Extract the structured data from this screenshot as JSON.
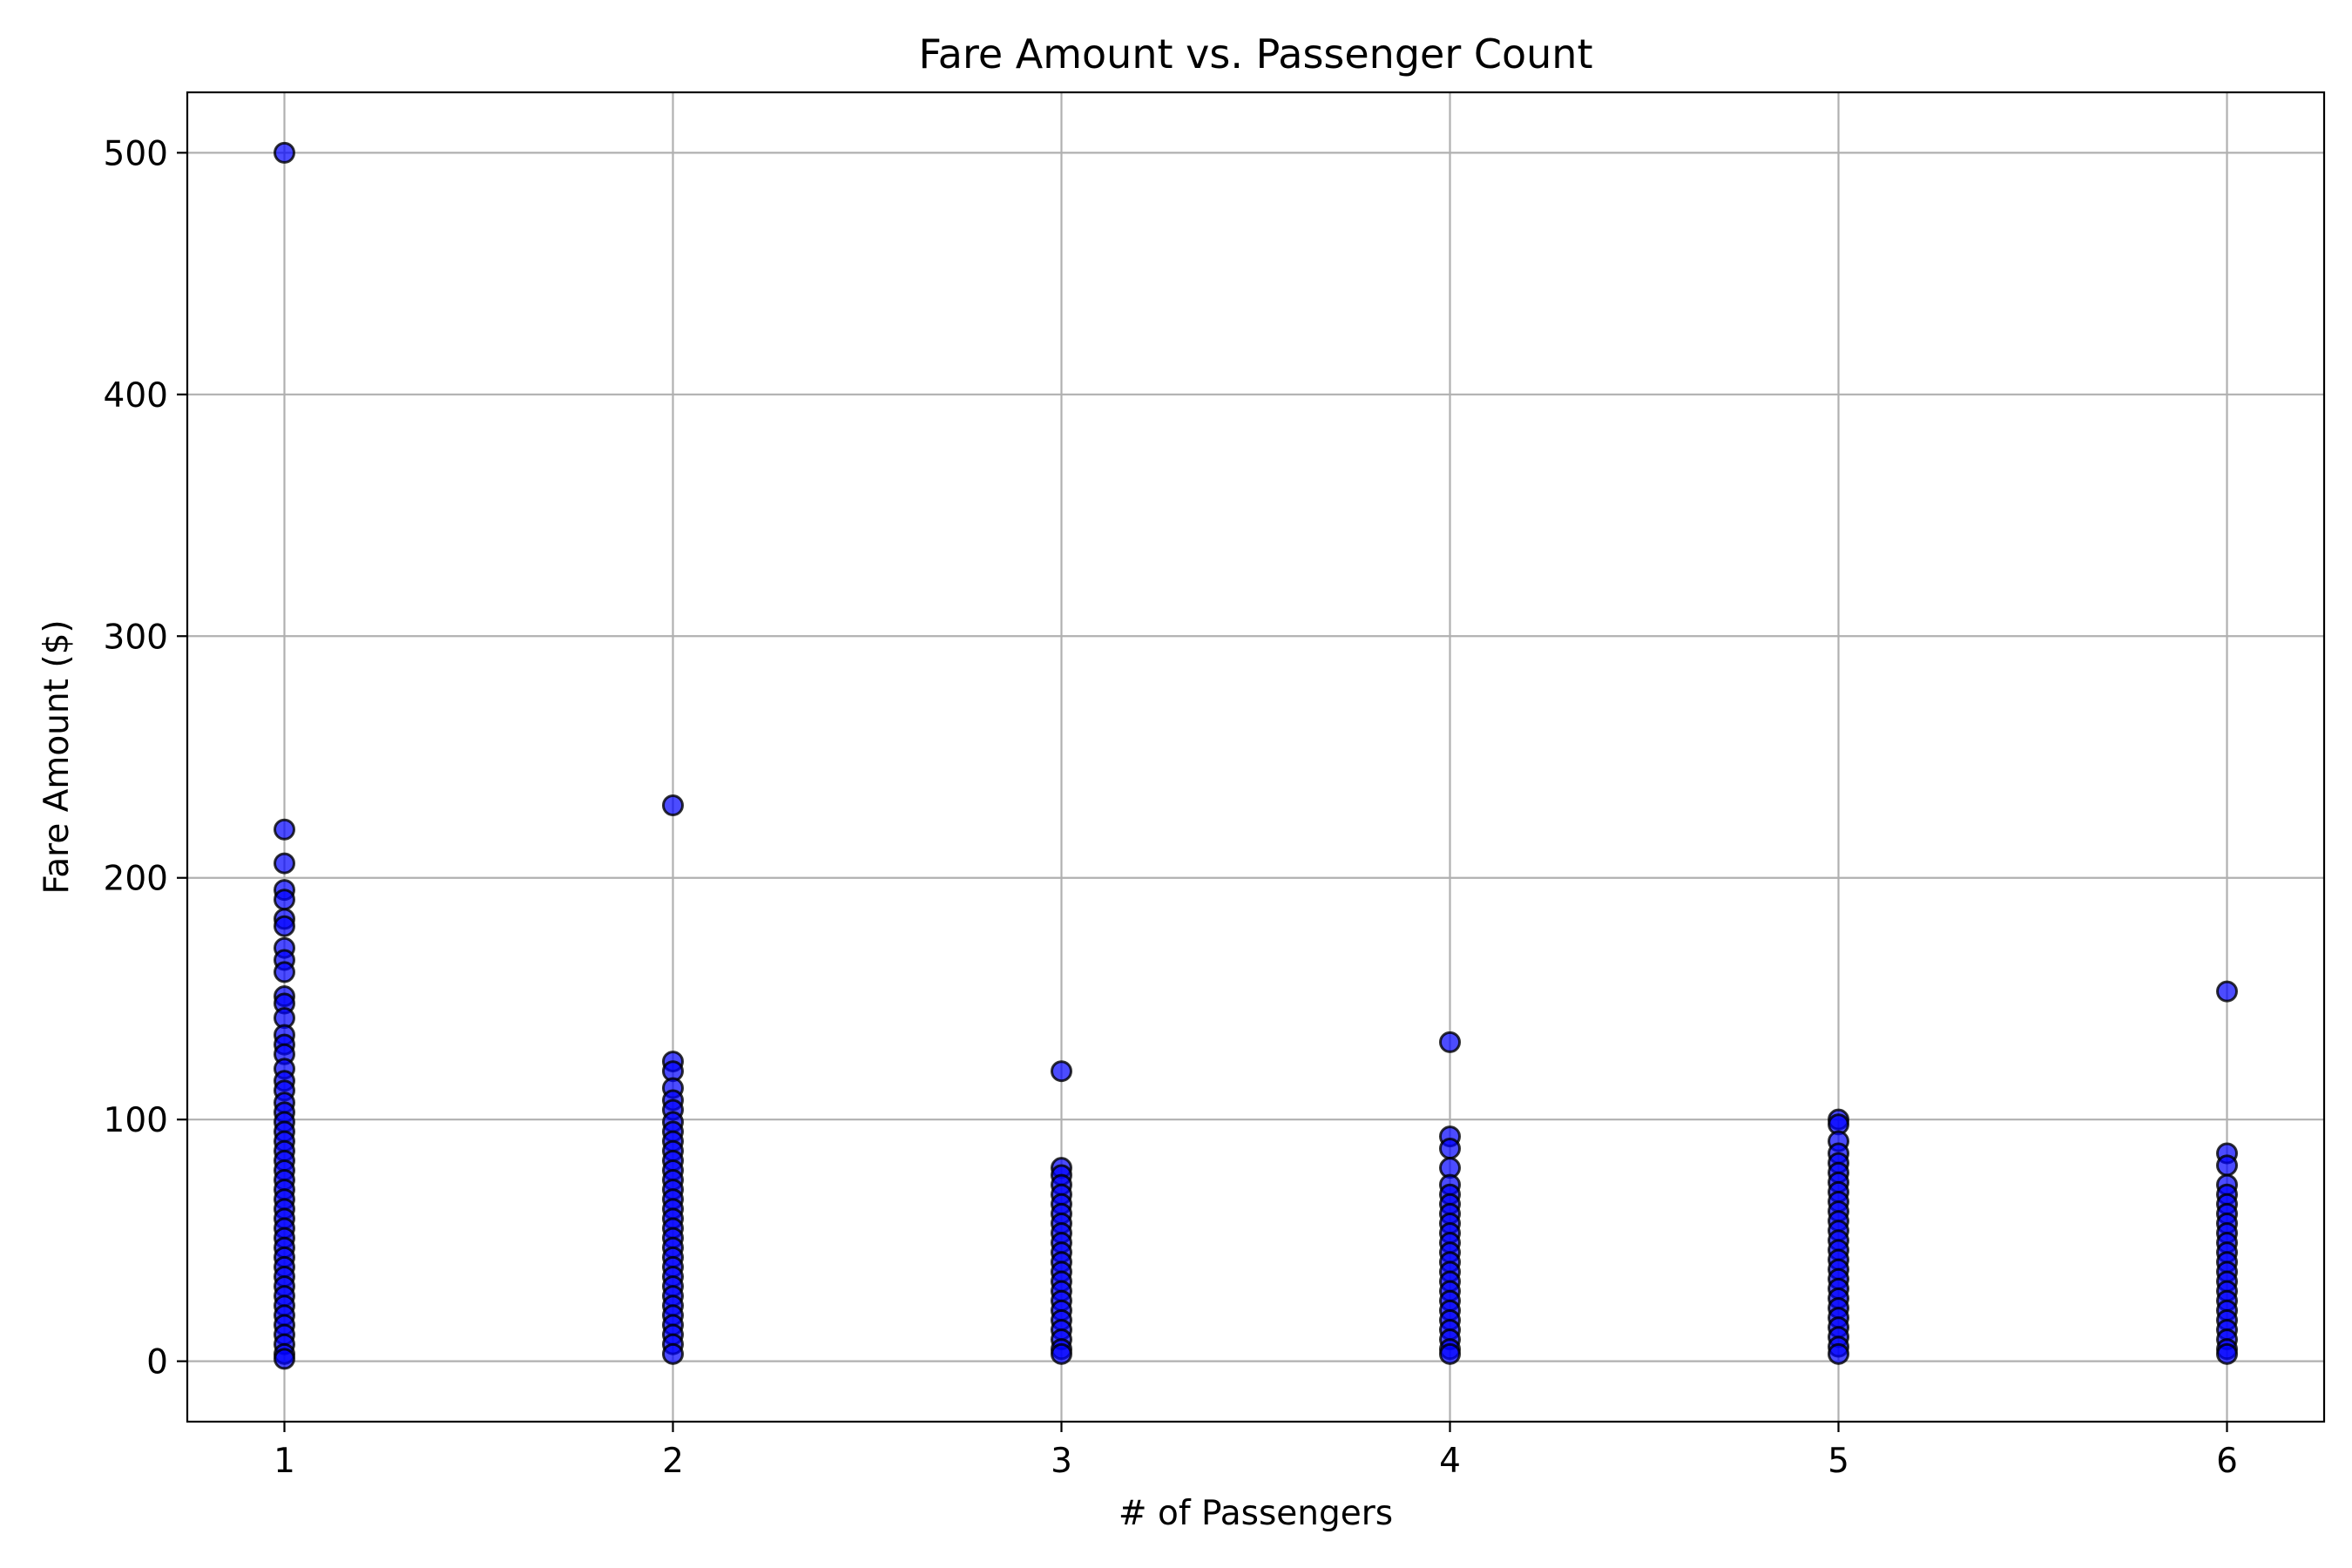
{
  "chart_data": {
    "type": "scatter",
    "title": "Fare Amount vs. Passenger Count",
    "xlabel": "# of Passengers",
    "ylabel": "Fare Amount ($)",
    "xlim": [
      0.75,
      6.25
    ],
    "ylim": [
      -25,
      525
    ],
    "xticks": [
      1,
      2,
      3,
      4,
      5,
      6
    ],
    "yticks": [
      0,
      100,
      200,
      300,
      400,
      500
    ],
    "grid": true,
    "legend": null,
    "marker_color": "#0000ff",
    "marker_edge_color": "#000000",
    "marker_alpha": 0.7,
    "series": [
      {
        "x": 1,
        "y": [
          500,
          220,
          206,
          195,
          191,
          183,
          180,
          171,
          166,
          161,
          151,
          148,
          142,
          135,
          131,
          127,
          121,
          116,
          112,
          107,
          103,
          99,
          95,
          91,
          87,
          83,
          79,
          75,
          71,
          67,
          63,
          59,
          55,
          51,
          47,
          43,
          39,
          35,
          31,
          27,
          23,
          19,
          15,
          11,
          7,
          3,
          1
        ]
      },
      {
        "x": 2,
        "y": [
          230,
          124,
          120,
          113,
          108,
          104,
          99,
          95,
          91,
          87,
          83,
          79,
          75,
          71,
          67,
          63,
          59,
          55,
          51,
          47,
          43,
          39,
          35,
          31,
          27,
          23,
          19,
          15,
          11,
          7,
          3
        ]
      },
      {
        "x": 3,
        "y": [
          120,
          80,
          77,
          73,
          69,
          65,
          61,
          57,
          53,
          49,
          45,
          41,
          37,
          33,
          29,
          25,
          21,
          17,
          13,
          9,
          5,
          3
        ]
      },
      {
        "x": 4,
        "y": [
          132,
          93,
          88,
          80,
          73,
          69,
          65,
          61,
          57,
          53,
          49,
          45,
          41,
          37,
          33,
          29,
          25,
          21,
          17,
          13,
          9,
          5,
          3
        ]
      },
      {
        "x": 5,
        "y": [
          100,
          98,
          91,
          86,
          82,
          78,
          74,
          70,
          66,
          62,
          58,
          54,
          50,
          46,
          42,
          38,
          34,
          30,
          26,
          22,
          18,
          14,
          10,
          6,
          3
        ]
      },
      {
        "x": 6,
        "y": [
          153,
          86,
          81,
          73,
          69,
          65,
          61,
          57,
          53,
          49,
          45,
          41,
          37,
          33,
          29,
          25,
          21,
          17,
          13,
          9,
          5,
          3
        ]
      }
    ]
  }
}
